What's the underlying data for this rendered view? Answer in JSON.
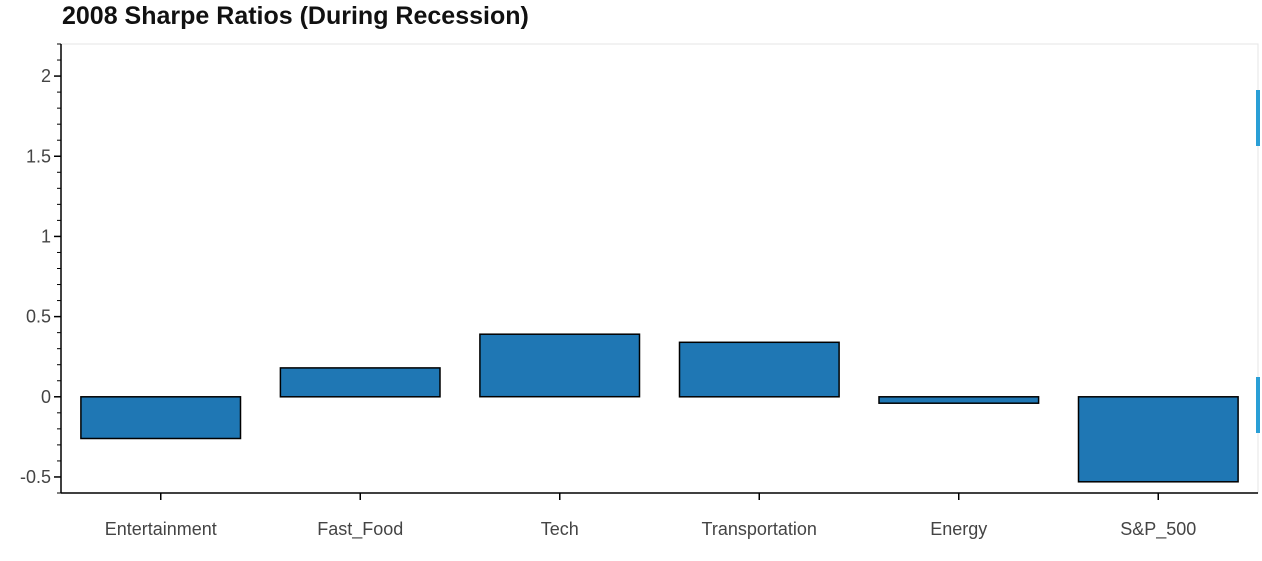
{
  "chart_data": {
    "type": "bar",
    "title": "2008 Sharpe Ratios (During Recession)",
    "categories": [
      "Entertainment",
      "Fast_Food",
      "Tech",
      "Transportation",
      "Energy",
      "S&P_500"
    ],
    "values": [
      -0.26,
      0.18,
      0.39,
      0.34,
      -0.04,
      -0.53
    ],
    "xlabel": "",
    "ylabel": "",
    "ylim": [
      -0.6,
      2.2
    ],
    "yticks": [
      -0.5,
      0,
      0.5,
      1,
      1.5,
      2
    ],
    "ytick_labels": [
      "-0.5",
      "0",
      "0.5",
      "1",
      "1.5",
      "2"
    ],
    "legend": false,
    "grid": false,
    "bar_color": "#1f77b4",
    "bar_edge_color": "#000000",
    "toolbar_accent_color": "#2a9fd6"
  }
}
